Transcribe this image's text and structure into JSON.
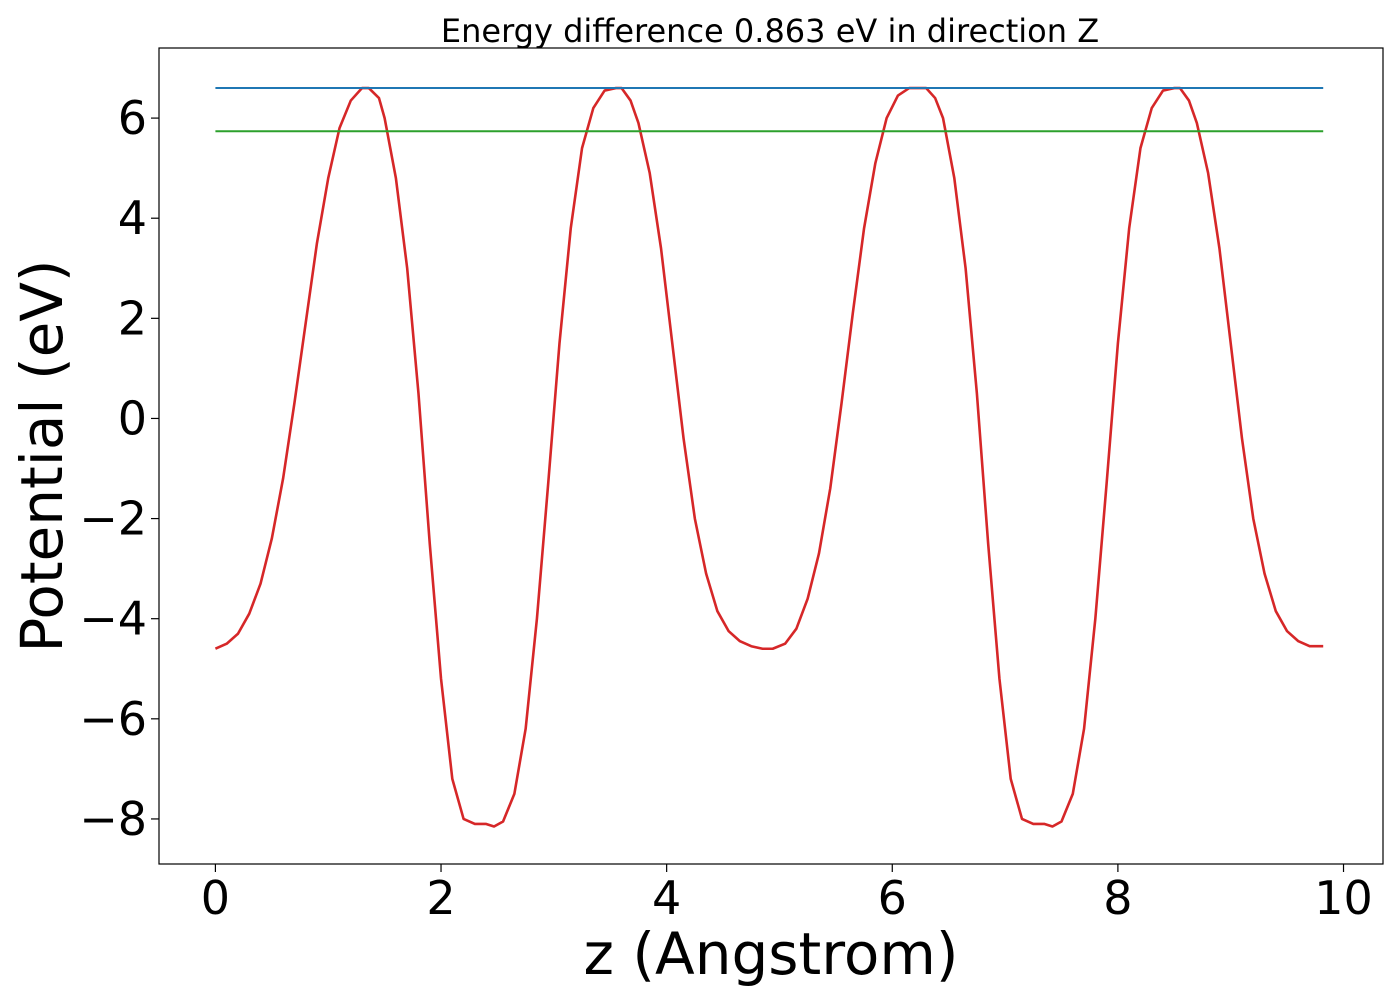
{
  "chart_data": {
    "type": "line",
    "title": "Energy difference 0.863 eV in direction Z",
    "xlabel": "z (Angstrom)",
    "ylabel": "Potential (eV)",
    "xlim": [
      -0.5,
      10.35
    ],
    "ylim": [
      -8.9,
      7.4
    ],
    "xticks": [
      0,
      2,
      4,
      6,
      8,
      10
    ],
    "yticks": [
      -8,
      -6,
      -4,
      -2,
      0,
      2,
      4,
      6
    ],
    "xtick_labels": [
      "0",
      "2",
      "4",
      "6",
      "8",
      "10"
    ],
    "ytick_labels": [
      "−8",
      "−6",
      "−4",
      "−2",
      "0",
      "2",
      "4",
      "6"
    ],
    "grid": false,
    "legend": "none",
    "series": [
      {
        "color": "#d62728",
        "x": [
          0.0,
          0.1,
          0.2,
          0.3,
          0.4,
          0.5,
          0.6,
          0.7,
          0.8,
          0.9,
          1.0,
          1.1,
          1.2,
          1.3,
          1.36,
          1.45,
          1.5,
          1.6,
          1.7,
          1.8,
          1.9,
          2.0,
          2.1,
          2.2,
          2.3,
          2.4,
          2.47,
          2.55,
          2.65,
          2.75,
          2.85,
          2.95,
          3.05,
          3.15,
          3.25,
          3.35,
          3.45,
          3.55,
          3.6,
          3.68,
          3.75,
          3.85,
          3.95,
          4.05,
          4.15,
          4.25,
          4.35,
          4.45,
          4.55,
          4.65,
          4.75,
          4.85,
          4.94,
          5.05,
          5.15,
          5.25,
          5.35,
          5.45,
          5.55,
          5.65,
          5.75,
          5.85,
          5.95,
          6.05,
          6.15,
          6.25,
          6.3,
          6.38,
          6.45,
          6.55,
          6.65,
          6.75,
          6.85,
          6.95,
          7.05,
          7.15,
          7.25,
          7.35,
          7.42,
          7.5,
          7.6,
          7.7,
          7.8,
          7.9,
          8.0,
          8.1,
          8.2,
          8.3,
          8.4,
          8.5,
          8.55,
          8.63,
          8.7,
          8.8,
          8.9,
          9.0,
          9.1,
          9.2,
          9.3,
          9.4,
          9.5,
          9.6,
          9.7,
          9.82
        ],
        "y": [
          -4.6,
          -4.5,
          -4.3,
          -3.9,
          -3.3,
          -2.4,
          -1.2,
          0.3,
          1.9,
          3.5,
          4.8,
          5.8,
          6.35,
          6.6,
          6.6,
          6.4,
          6.0,
          4.8,
          3.0,
          0.5,
          -2.5,
          -5.2,
          -7.2,
          -8.0,
          -8.1,
          -8.1,
          -8.15,
          -8.05,
          -7.5,
          -6.2,
          -4.0,
          -1.3,
          1.5,
          3.8,
          5.4,
          6.2,
          6.55,
          6.6,
          6.6,
          6.35,
          5.9,
          4.9,
          3.4,
          1.5,
          -0.4,
          -2.0,
          -3.1,
          -3.85,
          -4.25,
          -4.45,
          -4.55,
          -4.6,
          -4.6,
          -4.5,
          -4.2,
          -3.6,
          -2.7,
          -1.4,
          0.3,
          2.1,
          3.8,
          5.1,
          6.0,
          6.45,
          6.6,
          6.6,
          6.6,
          6.4,
          6.0,
          4.8,
          3.0,
          0.5,
          -2.5,
          -5.2,
          -7.2,
          -8.0,
          -8.1,
          -8.1,
          -8.15,
          -8.05,
          -7.5,
          -6.2,
          -4.0,
          -1.3,
          1.5,
          3.8,
          5.4,
          6.2,
          6.55,
          6.6,
          6.6,
          6.35,
          5.9,
          4.9,
          3.4,
          1.5,
          -0.4,
          -2.0,
          -3.1,
          -3.85,
          -4.25,
          -4.45,
          -4.55,
          -4.55
        ]
      },
      {
        "color": "#1f77b4",
        "x": [
          0.0,
          9.82
        ],
        "y": [
          6.6,
          6.6
        ]
      },
      {
        "color": "#2ca02c",
        "x": [
          0.0,
          9.82
        ],
        "y": [
          5.737,
          5.737
        ]
      }
    ]
  }
}
